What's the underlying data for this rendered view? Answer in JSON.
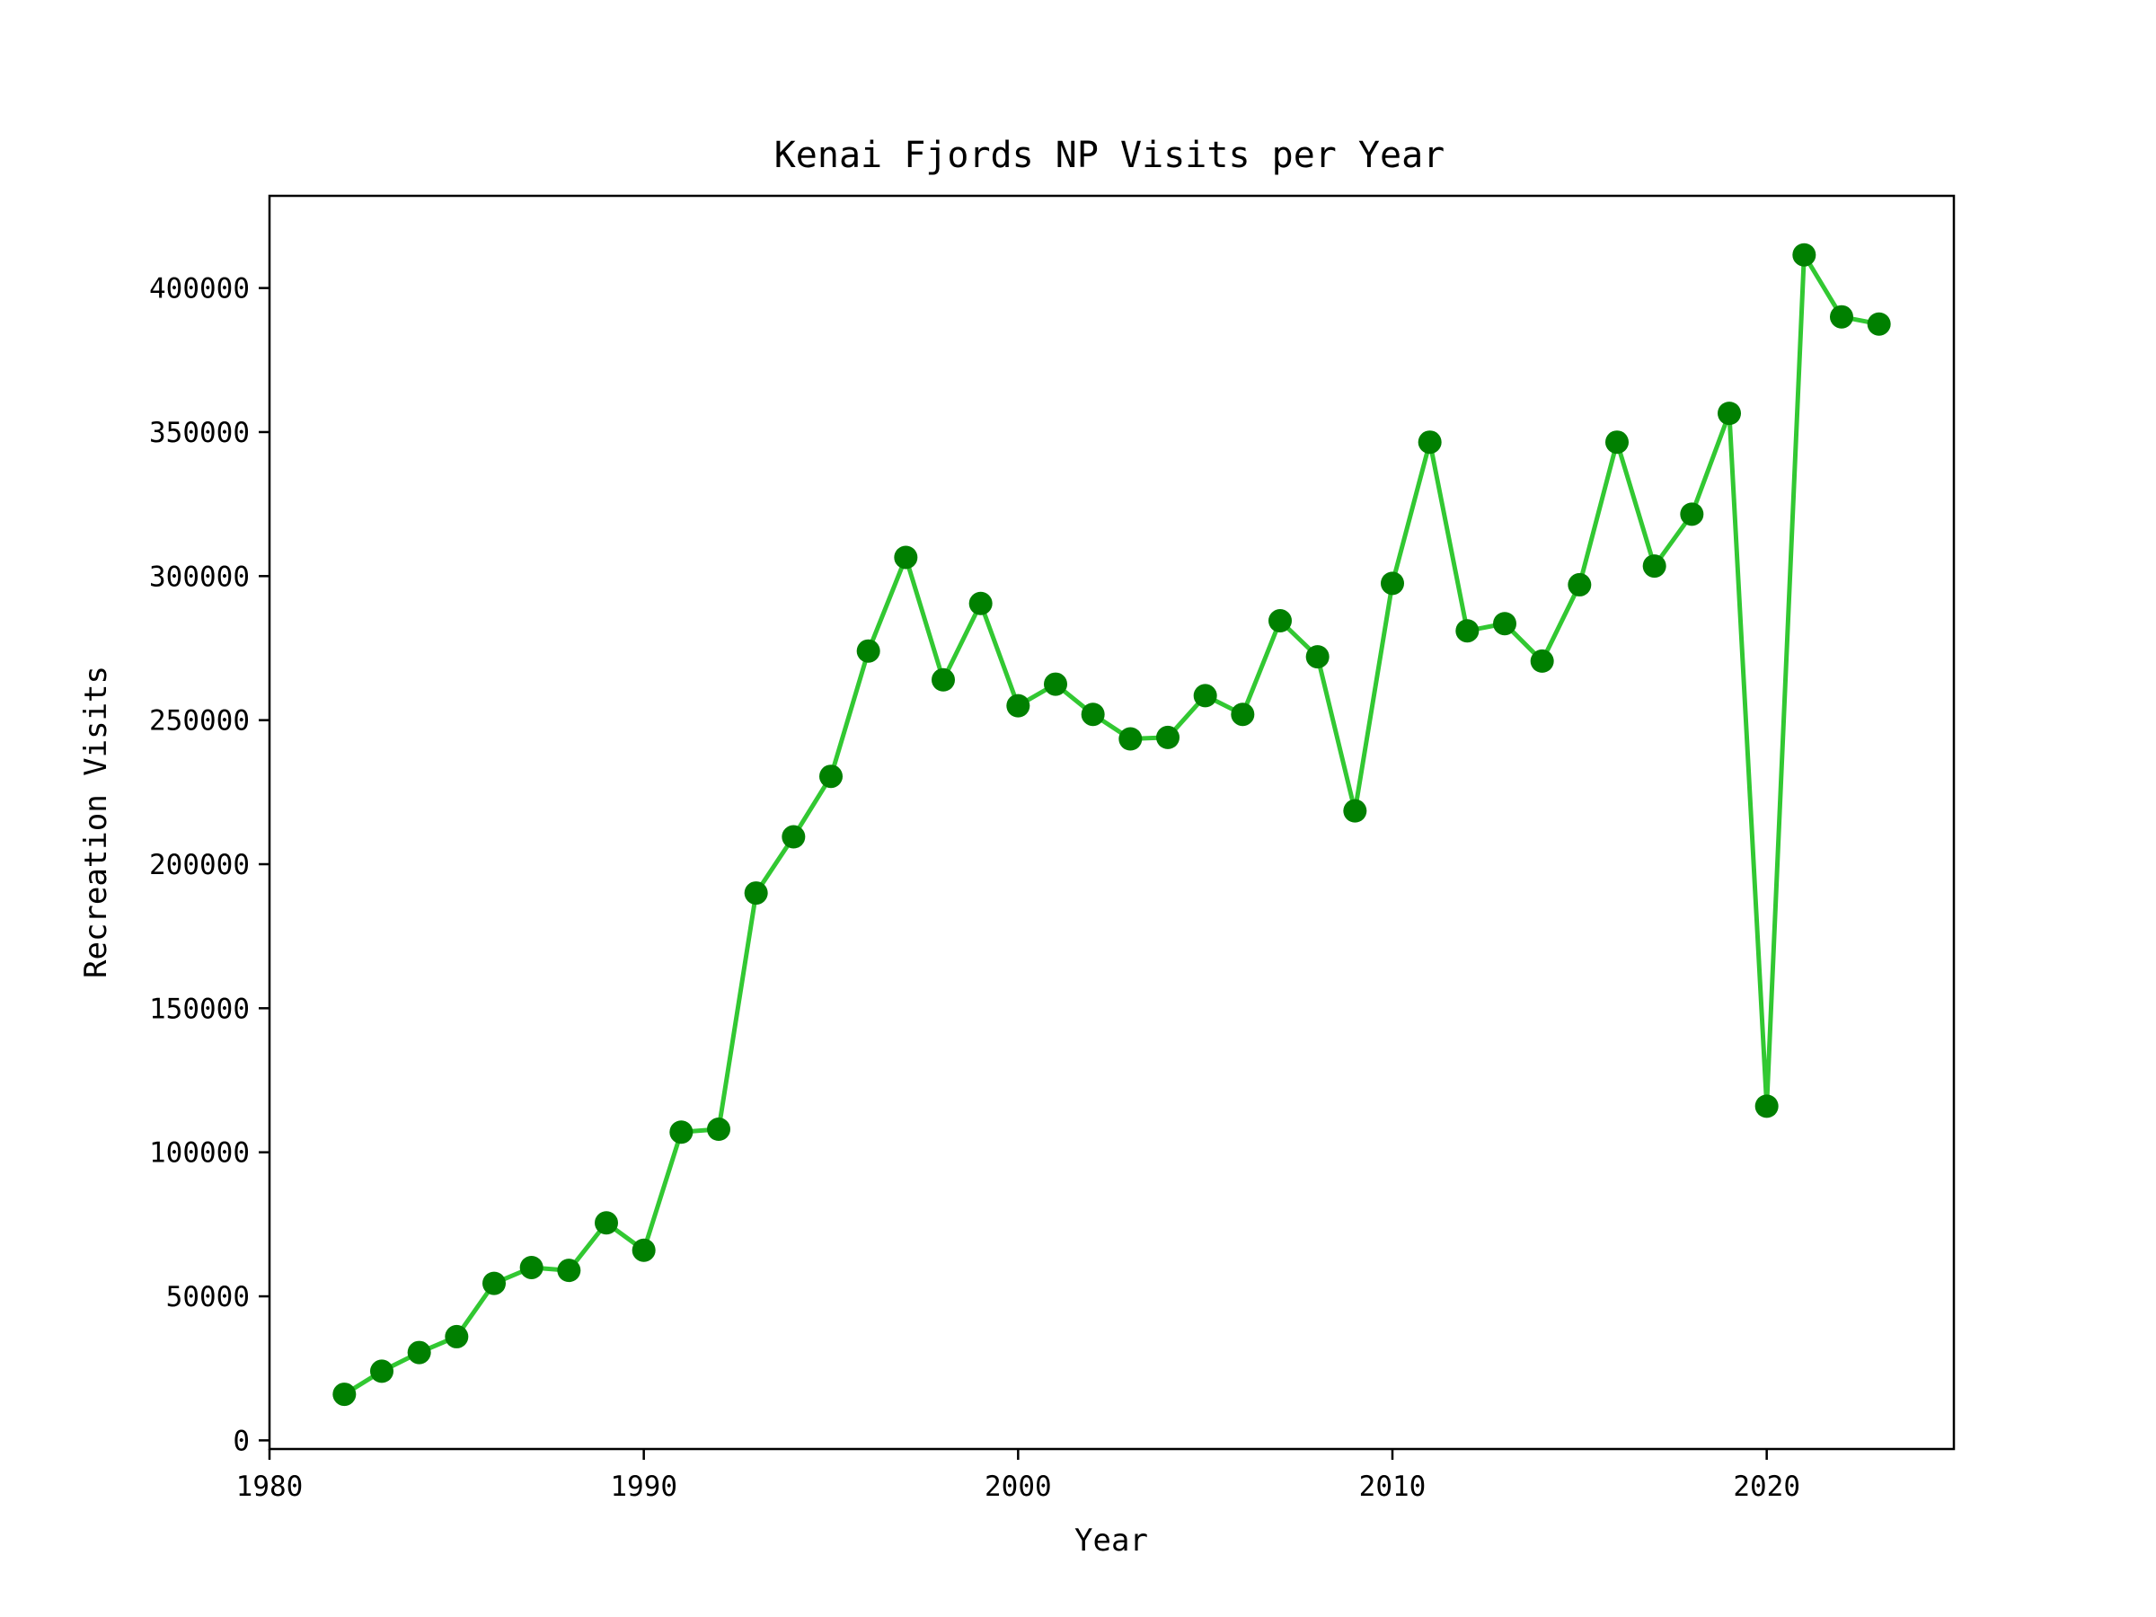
{
  "chart_data": {
    "type": "line",
    "title": "Kenai Fjords NP Visits per Year",
    "xlabel": "Year",
    "ylabel": "Recreation Visits",
    "xlim": [
      1980,
      2025
    ],
    "ylim": [
      -3000,
      432000
    ],
    "x_ticks": [
      1980,
      1990,
      2000,
      2010,
      2020
    ],
    "y_ticks": [
      0,
      50000,
      100000,
      150000,
      200000,
      250000,
      300000,
      350000,
      400000
    ],
    "grid": false,
    "legend": "none",
    "colors": {
      "line": "#32c832",
      "marker": "#008000"
    },
    "series": [
      {
        "x": [
          1982,
          1983,
          1984,
          1985,
          1986,
          1987,
          1988,
          1989,
          1990,
          1991,
          1992,
          1993,
          1994,
          1995,
          1996,
          1997,
          1998,
          1999,
          2000,
          2001,
          2002,
          2003,
          2004,
          2005,
          2006,
          2007,
          2008,
          2009,
          2010,
          2011,
          2012,
          2013,
          2014,
          2015,
          2016,
          2017,
          2018,
          2019,
          2020,
          2021,
          2022,
          2023
        ],
        "values": [
          16000,
          24000,
          30500,
          36000,
          54500,
          60000,
          59000,
          75500,
          66000,
          107000,
          108000,
          190000,
          209500,
          230500,
          274000,
          306500,
          264000,
          290500,
          255000,
          262500,
          252000,
          243500,
          244000,
          258500,
          252000,
          284500,
          272000,
          218500,
          297500,
          346500,
          281000,
          283500,
          270500,
          297000,
          346500,
          303500,
          321500,
          356500,
          116000,
          411500,
          390000,
          387500
        ]
      }
    ]
  }
}
